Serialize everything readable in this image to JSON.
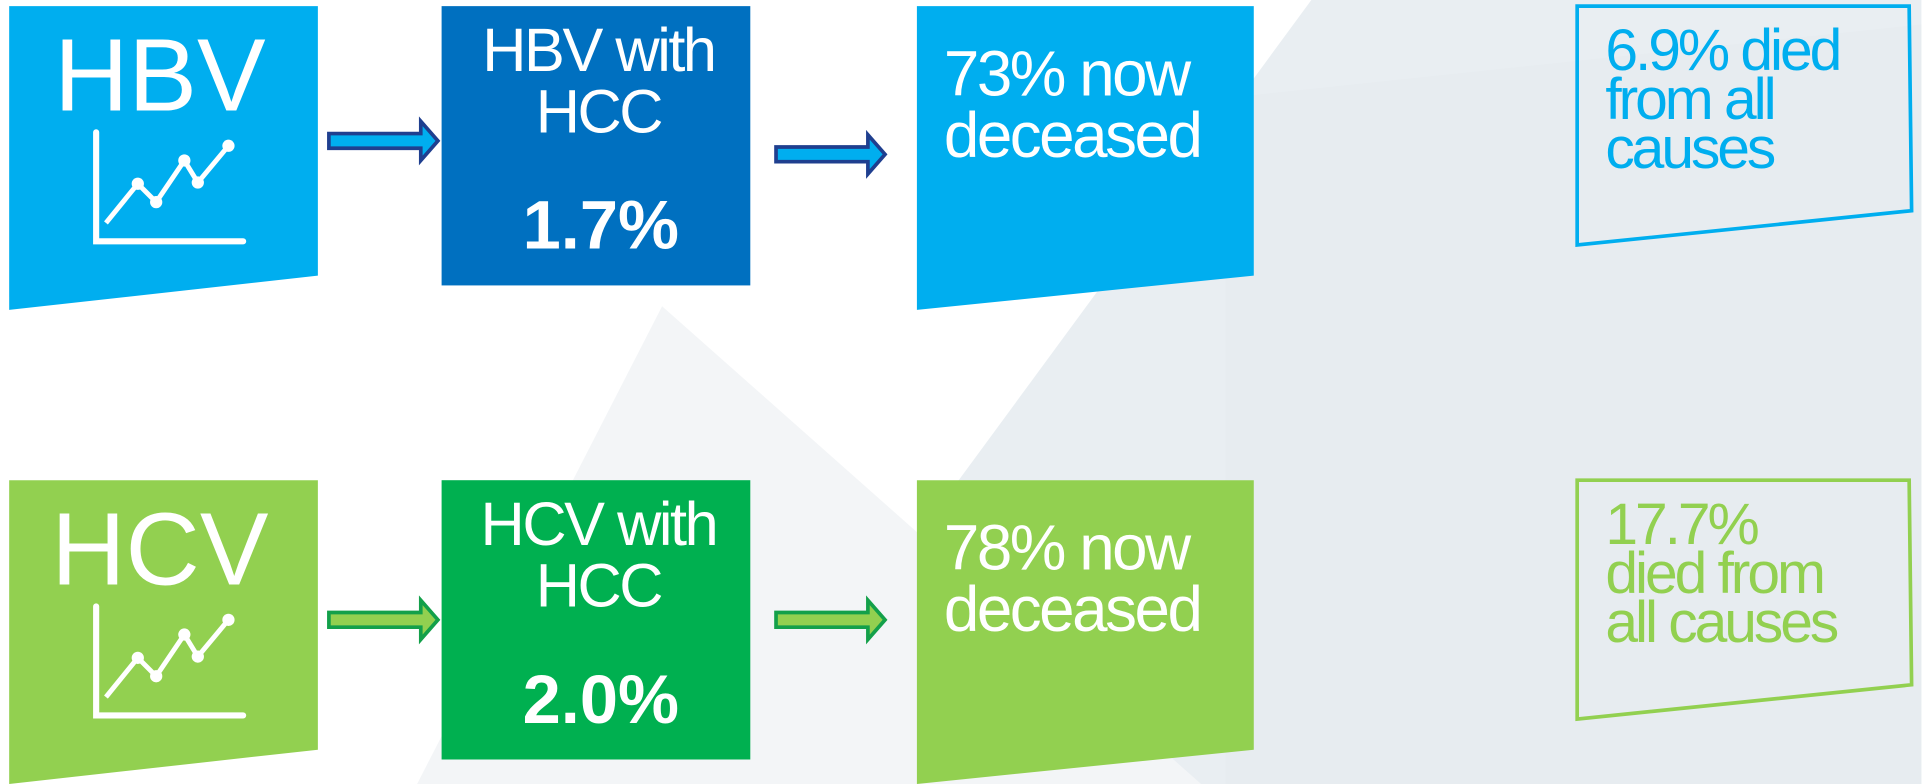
{
  "rows": [
    {
      "label": "HBV",
      "hcc_lines": [
        "HBV with",
        "HCC"
      ],
      "hcc_rate": "1.7%",
      "deceased_lines": [
        "73% now",
        "deceased"
      ],
      "all_cause_lines": [
        "6.9% died",
        "from all",
        "causes"
      ]
    },
    {
      "label": "HCV",
      "hcc_lines": [
        "HCV with",
        "HCC"
      ],
      "hcc_rate": "2.0%",
      "deceased_lines": [
        "78% now",
        "deceased"
      ],
      "all_cause_lines": [
        "17.7%",
        "died from",
        "all causes"
      ]
    }
  ]
}
